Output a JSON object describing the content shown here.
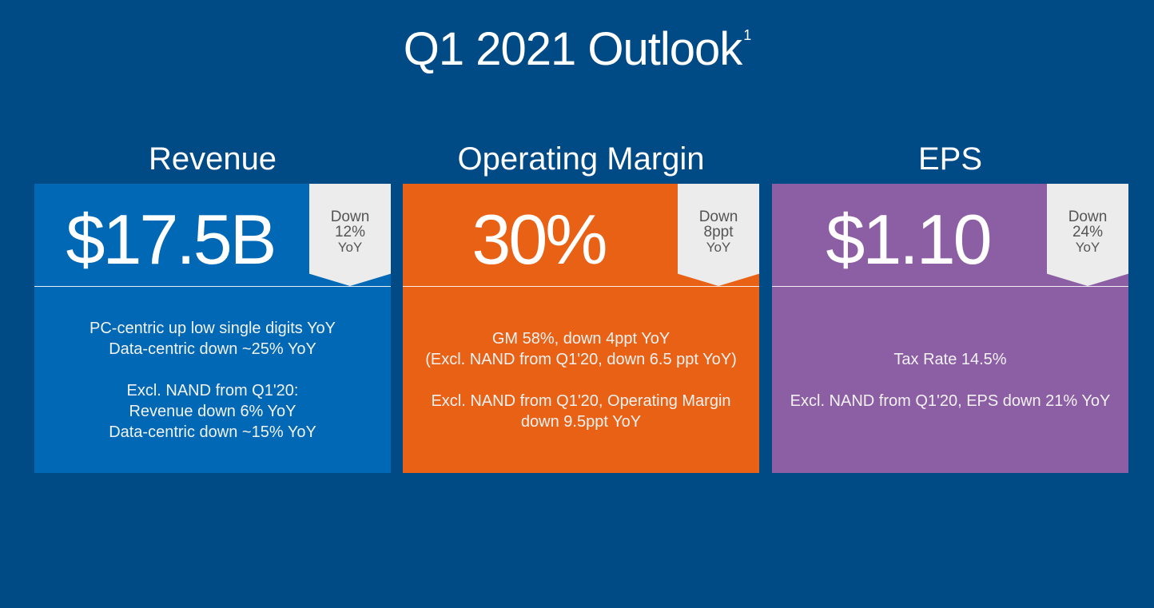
{
  "title": "Q1 2021 Outlook",
  "title_footnote": "1",
  "columns": [
    {
      "heading": "Revenue",
      "value": "$17.5B",
      "change": [
        "Down",
        "12%",
        "YoY"
      ],
      "color": "#0068b5",
      "paragraphs": [
        [
          "PC-centric up low single digits YoY",
          "Data-centric down ~25% YoY"
        ],
        [
          "Excl. NAND from Q1'20:",
          "Revenue down 6% YoY",
          "Data-centric down ~15% YoY"
        ]
      ]
    },
    {
      "heading": "Operating Margin",
      "value": "30%",
      "change": [
        "Down",
        "8ppt",
        "YoY"
      ],
      "color": "#e96115",
      "paragraphs": [
        [
          "GM 58%, down 4ppt YoY",
          "(Excl. NAND from Q1'20, down 6.5 ppt YoY)"
        ],
        [
          "Excl. NAND from Q1'20, Operating Margin",
          "down 9.5ppt YoY"
        ]
      ]
    },
    {
      "heading": "EPS",
      "value": "$1.10",
      "change": [
        "Down",
        "24%",
        "YoY"
      ],
      "color": "#8c5ea4",
      "paragraphs": [
        [
          "Tax Rate 14.5%"
        ],
        [
          "Excl. NAND from Q1'20, EPS down 21% YoY"
        ]
      ]
    }
  ]
}
